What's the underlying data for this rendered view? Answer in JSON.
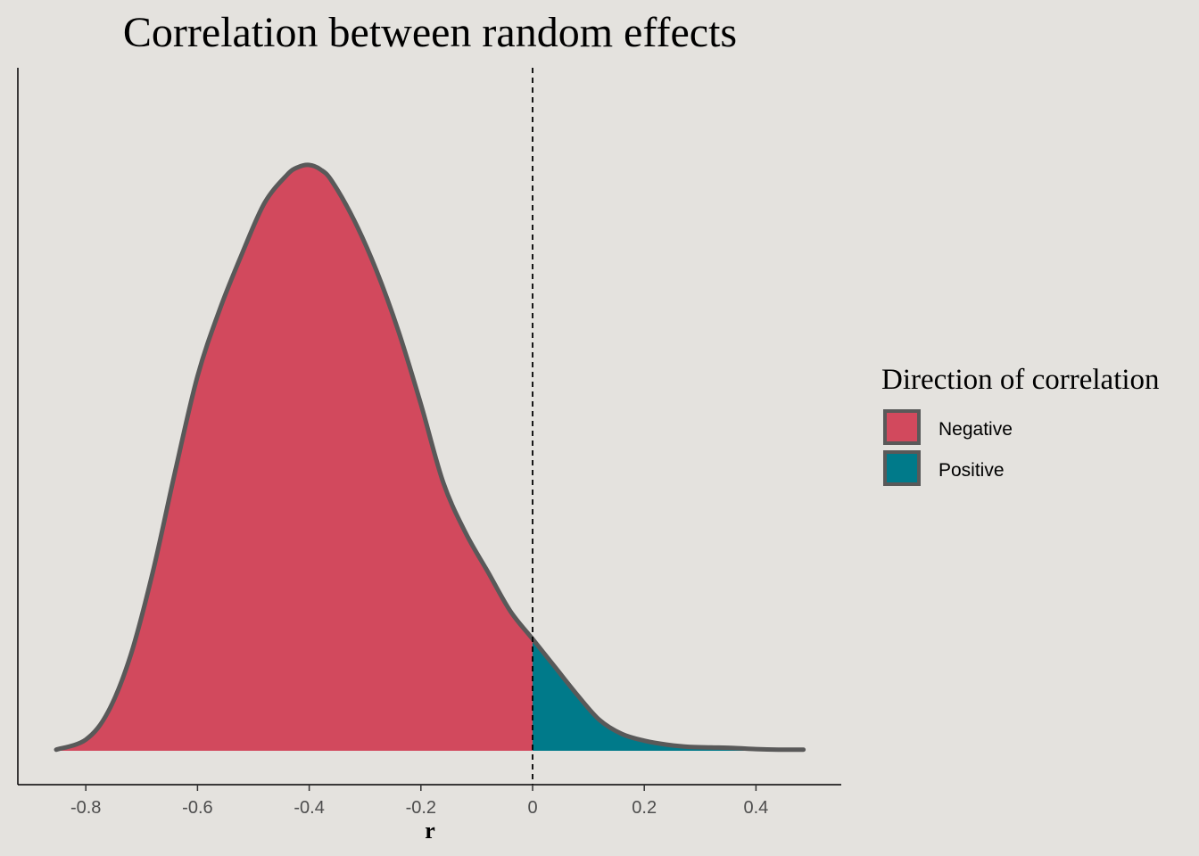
{
  "chart_data": {
    "type": "area",
    "title": "Correlation between random effects",
    "xlabel": "r",
    "ylabel": "",
    "xlim": [
      -0.92,
      0.55
    ],
    "ylim": [
      0,
      1.06
    ],
    "x_ticks": [
      -0.8,
      -0.6,
      -0.4,
      -0.2,
      0,
      0.2,
      0.4
    ],
    "x_tick_labels": [
      "-0.8",
      "-0.6",
      "-0.4",
      "-0.2",
      "0",
      "0.2",
      "0.4"
    ],
    "y_ticks_shown": false,
    "grid": false,
    "reference_line": {
      "x": 0,
      "style": "dashed",
      "color": "#000000"
    },
    "outline_color": "#595959",
    "density": {
      "x": [
        -0.853,
        -0.8,
        -0.76,
        -0.72,
        -0.68,
        -0.64,
        -0.6,
        -0.56,
        -0.52,
        -0.48,
        -0.44,
        -0.42,
        -0.4,
        -0.38,
        -0.36,
        -0.32,
        -0.28,
        -0.24,
        -0.2,
        -0.16,
        -0.12,
        -0.08,
        -0.04,
        0,
        0.04,
        0.08,
        0.12,
        0.16,
        0.2,
        0.24,
        0.28,
        0.32,
        0.36,
        0.4,
        0.44,
        0.485
      ],
      "y": [
        0.002,
        0.02,
        0.07,
        0.17,
        0.32,
        0.5,
        0.67,
        0.79,
        0.89,
        0.98,
        1.03,
        1.044,
        1.048,
        1.04,
        1.02,
        0.95,
        0.86,
        0.75,
        0.62,
        0.48,
        0.39,
        0.32,
        0.25,
        0.2,
        0.15,
        0.1,
        0.055,
        0.03,
        0.018,
        0.011,
        0.007,
        0.006,
        0.005,
        0.003,
        0.002,
        0.002
      ]
    },
    "series": [
      {
        "name": "Negative",
        "color": "#D2495D",
        "range": [
          -0.853,
          0
        ]
      },
      {
        "name": "Positive",
        "color": "#007A8A",
        "range": [
          0,
          0.485
        ]
      }
    ],
    "legend": {
      "title": "Direction of correlation",
      "placement": "right"
    }
  }
}
